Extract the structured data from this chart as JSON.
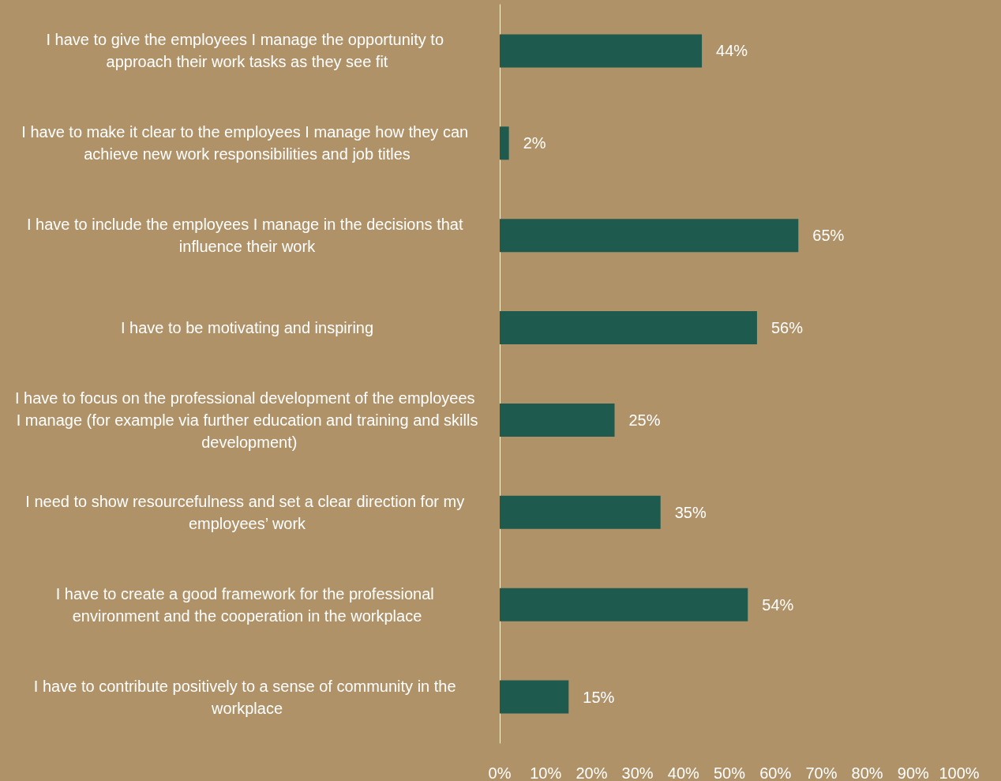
{
  "chart_data": {
    "type": "bar",
    "orientation": "horizontal",
    "categories": [
      "I have to give the employees I manage the opportunity to approach their work tasks as they see fit",
      "I have to make it clear to the employees I manage how they can achieve new work responsibilities and job titles",
      "I have to include the employees I manage in the decisions that influence their work",
      "I have to be motivating and inspiring",
      "I have to focus on the professional development of the employees I manage (for example via further education and training and skills development)",
      "I need to show resourcefulness and set a clear direction for my employees’ work",
      "I have to create a good framework for the professional environment and the cooperation in the workplace",
      "I have to contribute positively to a sense of community in the workplace"
    ],
    "values": [
      44,
      2,
      65,
      56,
      25,
      35,
      54,
      15
    ],
    "value_labels": [
      "44%",
      "2%",
      "65%",
      "56%",
      "25%",
      "35%",
      "54%",
      "15%"
    ],
    "color": "#1e5a4e",
    "xlim": [
      0,
      100
    ],
    "xticks": [
      {
        "value": 0,
        "label": "0%"
      },
      {
        "value": 10,
        "label": "10%"
      },
      {
        "value": 20,
        "label": "20%"
      },
      {
        "value": 30,
        "label": "30%"
      },
      {
        "value": 40,
        "label": "40%"
      },
      {
        "value": 50,
        "label": "50%"
      },
      {
        "value": 60,
        "label": "60%"
      },
      {
        "value": 70,
        "label": "70%"
      },
      {
        "value": 80,
        "label": "80%"
      },
      {
        "value": 90,
        "label": "90%"
      },
      {
        "value": 100,
        "label": "100%"
      }
    ],
    "grid": false
  }
}
